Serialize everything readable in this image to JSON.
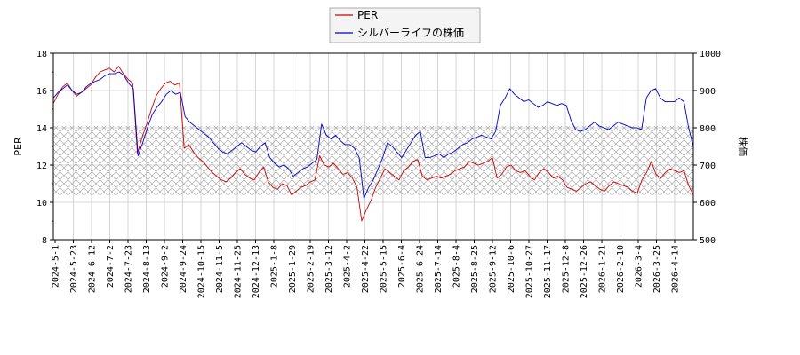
{
  "chart_data": {
    "type": "line",
    "title": "",
    "xlabel": "",
    "ylabel_left": "PER",
    "ylabel_right": "株価",
    "ylim_left": [
      8,
      18
    ],
    "ylim_right": [
      500,
      1000
    ],
    "yticks_left": [
      "8",
      "10",
      "12",
      "14",
      "16",
      "18"
    ],
    "yticks_right": [
      "500",
      "600",
      "700",
      "800",
      "900",
      "1000"
    ],
    "x_tick_labels": [
      "2024-5-1",
      "2024-5-23",
      "2024-6-12",
      "2024-7-2",
      "2024-7-23",
      "2024-8-13",
      "2024-9-2",
      "2024-9-24",
      "2024-10-15",
      "2024-11-5",
      "2024-11-25",
      "2024-12-13",
      "2025-1-8",
      "2025-1-29",
      "2025-2-19",
      "2025-3-12",
      "2025-4-2",
      "2025-4-22",
      "2025-5-15",
      "2025-6-4",
      "2025-6-24",
      "2025-7-14",
      "2025-8-4",
      "2025-8-25",
      "2025-9-12",
      "2025-10-6",
      "2025-10-27",
      "2025-11-17",
      "2025-12-8",
      "2025-12-26",
      "2026-1-21",
      "2026-2-10",
      "2026-3-4",
      "2026-3-25",
      "2026-4-14"
    ],
    "grid": true,
    "legend_position": "top-center",
    "band_left": [
      10.4,
      14.1
    ],
    "series": [
      {
        "name": "PER",
        "axis": "left",
        "color": "#cc0000",
        "values": [
          15.3,
          15.8,
          16.2,
          16.4,
          16.0,
          15.7,
          15.9,
          16.1,
          16.3,
          16.7,
          17.0,
          17.1,
          17.2,
          17.0,
          17.3,
          16.9,
          16.6,
          16.4,
          12.6,
          13.5,
          14.2,
          15.0,
          15.7,
          16.1,
          16.4,
          16.5,
          16.3,
          16.4,
          12.9,
          13.1,
          12.7,
          12.4,
          12.2,
          11.9,
          11.6,
          11.4,
          11.2,
          11.1,
          11.3,
          11.6,
          11.8,
          11.5,
          11.3,
          11.2,
          11.6,
          11.9,
          11.1,
          10.8,
          10.7,
          11.0,
          10.9,
          10.4,
          10.6,
          10.8,
          10.9,
          11.1,
          11.2,
          12.5,
          12.0,
          11.9,
          12.1,
          11.8,
          11.5,
          11.6,
          11.3,
          10.8,
          9.0,
          9.6,
          10.1,
          10.8,
          11.3,
          11.8,
          11.6,
          11.4,
          11.2,
          11.7,
          11.9,
          12.2,
          12.3,
          11.4,
          11.2,
          11.3,
          11.4,
          11.3,
          11.4,
          11.5,
          11.7,
          11.8,
          11.9,
          12.2,
          12.1,
          12.0,
          12.1,
          12.2,
          12.4,
          11.3,
          11.5,
          11.9,
          12.0,
          11.7,
          11.6,
          11.7,
          11.4,
          11.2,
          11.6,
          11.8,
          11.6,
          11.3,
          11.4,
          11.2,
          10.8,
          10.7,
          10.6,
          10.8,
          11.0,
          11.1,
          10.9,
          10.7,
          10.6,
          10.9,
          11.1,
          11.0,
          10.9,
          10.8,
          10.6,
          10.5,
          11.2,
          11.6,
          12.2,
          11.5,
          11.3,
          11.6,
          11.8,
          11.7,
          11.6,
          11.7,
          10.9,
          10.4
        ]
      },
      {
        "name": "シルバーライフの株価",
        "axis": "right",
        "color": "#0000cc",
        "values": [
          880,
          895,
          905,
          915,
          900,
          890,
          895,
          910,
          920,
          925,
          930,
          940,
          945,
          945,
          950,
          940,
          920,
          905,
          725,
          760,
          800,
          835,
          855,
          870,
          890,
          900,
          890,
          895,
          830,
          815,
          805,
          795,
          785,
          775,
          760,
          745,
          735,
          730,
          740,
          750,
          760,
          750,
          740,
          735,
          750,
          760,
          720,
          705,
          695,
          700,
          690,
          670,
          680,
          690,
          695,
          705,
          715,
          810,
          780,
          770,
          780,
          765,
          755,
          755,
          745,
          720,
          610,
          640,
          660,
          690,
          720,
          760,
          750,
          735,
          720,
          740,
          760,
          780,
          790,
          720,
          720,
          725,
          730,
          720,
          730,
          735,
          745,
          755,
          760,
          770,
          775,
          780,
          775,
          770,
          790,
          860,
          880,
          905,
          890,
          880,
          870,
          875,
          865,
          855,
          860,
          870,
          865,
          860,
          865,
          860,
          820,
          795,
          790,
          795,
          805,
          815,
          805,
          800,
          795,
          805,
          815,
          810,
          805,
          800,
          800,
          795,
          880,
          900,
          905,
          880,
          870,
          870,
          870,
          880,
          870,
          800,
          750
        ]
      }
    ]
  }
}
